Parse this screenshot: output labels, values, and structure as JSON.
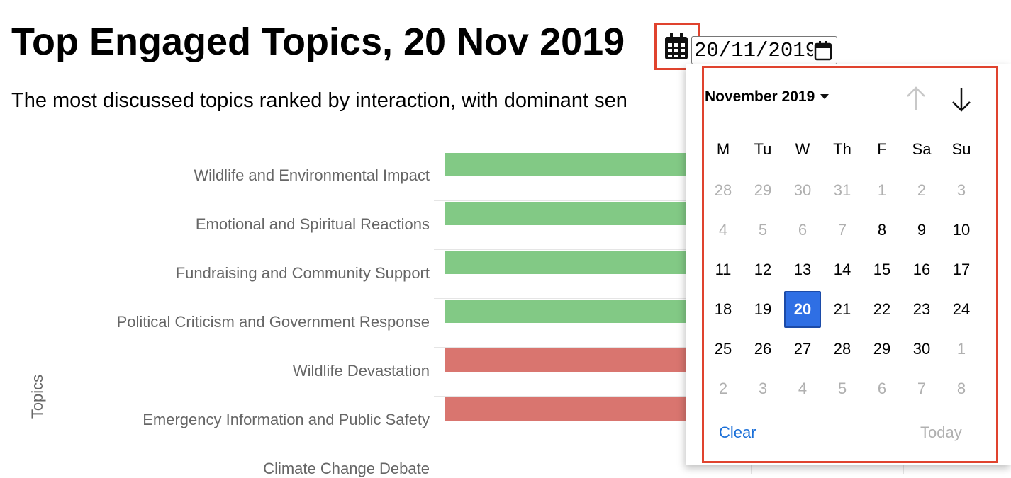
{
  "header": {
    "title": "Top Engaged Topics, 20 Nov 2019",
    "subtitle": "The most discussed topics ranked by interaction, with dominant sen"
  },
  "date_input": {
    "value": "20/11/2019",
    "icon": "calendar-icon"
  },
  "chart_data": {
    "type": "bar",
    "orientation": "horizontal",
    "ylabel": "Topics",
    "categories": [
      "Wildlife and Environmental Impact",
      "Emotional and Spiritual Reactions",
      "Fundraising and Community Support",
      "Political Criticism and Government Response",
      "Wildlife Devastation",
      "Emergency Information and Public Safety",
      "Climate Change Debate"
    ],
    "sentiment": [
      "positive",
      "positive",
      "positive",
      "positive",
      "negative",
      "negative",
      "unknown"
    ],
    "colors": {
      "positive": "#82c985",
      "negative": "#d9756f"
    }
  },
  "datepicker": {
    "month_label": "November 2019",
    "weekdays": [
      "M",
      "Tu",
      "W",
      "Th",
      "F",
      "Sa",
      "Su"
    ],
    "weeks": [
      [
        {
          "d": "28",
          "m": true
        },
        {
          "d": "29",
          "m": true
        },
        {
          "d": "30",
          "m": true
        },
        {
          "d": "31",
          "m": true
        },
        {
          "d": "1",
          "m": true
        },
        {
          "d": "2",
          "m": true
        },
        {
          "d": "3",
          "m": true
        }
      ],
      [
        {
          "d": "4",
          "m": true
        },
        {
          "d": "5",
          "m": true
        },
        {
          "d": "6",
          "m": true
        },
        {
          "d": "7",
          "m": true
        },
        {
          "d": "8",
          "m": false
        },
        {
          "d": "9",
          "m": false
        },
        {
          "d": "10",
          "m": false
        }
      ],
      [
        {
          "d": "11",
          "m": false
        },
        {
          "d": "12",
          "m": false
        },
        {
          "d": "13",
          "m": false
        },
        {
          "d": "14",
          "m": false
        },
        {
          "d": "15",
          "m": false
        },
        {
          "d": "16",
          "m": false
        },
        {
          "d": "17",
          "m": false
        }
      ],
      [
        {
          "d": "18",
          "m": false
        },
        {
          "d": "19",
          "m": false
        },
        {
          "d": "20",
          "m": false,
          "sel": true
        },
        {
          "d": "21",
          "m": false
        },
        {
          "d": "22",
          "m": false
        },
        {
          "d": "23",
          "m": false
        },
        {
          "d": "24",
          "m": false
        }
      ],
      [
        {
          "d": "25",
          "m": false
        },
        {
          "d": "26",
          "m": false
        },
        {
          "d": "27",
          "m": false
        },
        {
          "d": "28",
          "m": false
        },
        {
          "d": "29",
          "m": false
        },
        {
          "d": "30",
          "m": false
        },
        {
          "d": "1",
          "m": true
        }
      ],
      [
        {
          "d": "2",
          "m": true
        },
        {
          "d": "3",
          "m": true
        },
        {
          "d": "4",
          "m": true
        },
        {
          "d": "5",
          "m": true
        },
        {
          "d": "6",
          "m": true
        },
        {
          "d": "7",
          "m": true
        },
        {
          "d": "8",
          "m": true
        }
      ]
    ],
    "clear_label": "Clear",
    "today_label": "Today",
    "selected_color": "#2f6fe4",
    "highlight_color": "#e0432e"
  }
}
